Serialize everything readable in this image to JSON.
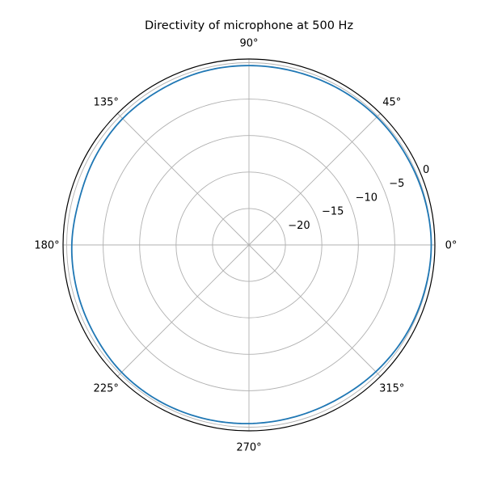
{
  "chart_data": {
    "type": "polar-line",
    "title": "Directivity of microphone at 500 Hz",
    "angle_ticks": [
      {
        "deg": 0,
        "label": "0°"
      },
      {
        "deg": 45,
        "label": "45°"
      },
      {
        "deg": 90,
        "label": "90°"
      },
      {
        "deg": 135,
        "label": "135°"
      },
      {
        "deg": 180,
        "label": "180°"
      },
      {
        "deg": 225,
        "label": "225°"
      },
      {
        "deg": 270,
        "label": "270°"
      },
      {
        "deg": 315,
        "label": "315°"
      }
    ],
    "radial_ticks": [
      {
        "value": -20,
        "label": "−20"
      },
      {
        "value": -15,
        "label": "−15"
      },
      {
        "value": -10,
        "label": "−10"
      },
      {
        "value": -5,
        "label": "−5"
      },
      {
        "value": 0,
        "label": "0"
      }
    ],
    "rlim": [
      -25,
      0.5
    ],
    "radial_label_angle_deg": 22.5,
    "grid": true,
    "series": [
      {
        "color": "#1f77b4",
        "theta_deg": [
          0,
          15,
          30,
          45,
          60,
          75,
          90,
          105,
          120,
          135,
          150,
          165,
          180,
          195,
          210,
          225,
          240,
          255,
          270,
          285,
          300,
          315,
          330,
          345,
          360
        ],
        "r": [
          0,
          -0.1,
          -0.2,
          -0.2,
          -0.3,
          -0.4,
          -0.4,
          -0.4,
          -0.5,
          -0.5,
          -0.7,
          -0.9,
          -0.7,
          -0.6,
          -0.5,
          -0.3,
          -0.3,
          -0.4,
          -0.5,
          -0.6,
          -0.6,
          -0.4,
          -0.2,
          -0.1,
          0
        ]
      }
    ]
  }
}
